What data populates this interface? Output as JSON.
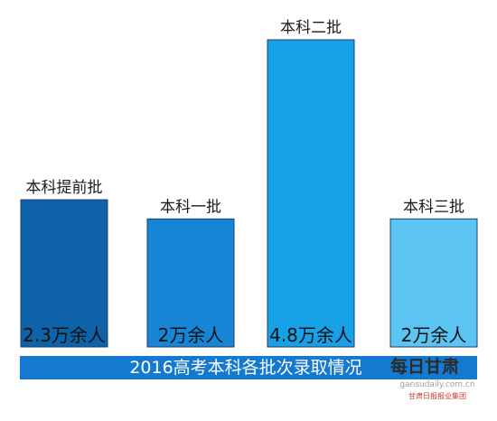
{
  "chart_data": {
    "type": "bar",
    "title": "2016高考本科各批次录取情况",
    "categories": [
      "本科提前批",
      "本科一批",
      "本科二批",
      "本科三批"
    ],
    "values": [
      2.3,
      2,
      4.8,
      2
    ],
    "value_labels": [
      "2.3万余人",
      "2万余人",
      "4.8万余人",
      "2万余人"
    ],
    "unit": "万余人",
    "bar_colors": [
      "#0d62a8",
      "#1685d6",
      "#17a2e8",
      "#5cc4f3"
    ],
    "title_band_color": "#1479cf",
    "ylim": [
      0,
      4.8
    ],
    "grid": false,
    "legend": "none"
  },
  "watermark": {
    "logo": "每日甘肃",
    "url": "gansudaily.com.cn",
    "sub": "甘肃日报报业集团"
  }
}
